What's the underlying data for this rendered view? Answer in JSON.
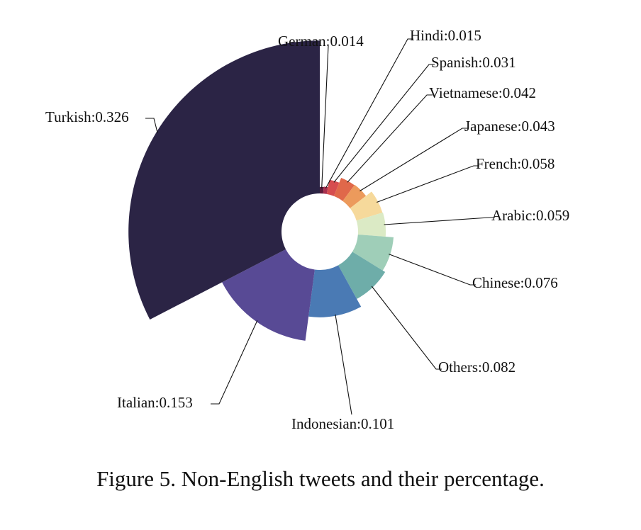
{
  "figure": {
    "caption": "Figure 5. Non-English tweets and their percentage."
  },
  "chart_data": {
    "type": "pie",
    "variant": "rose-donut",
    "slices": [
      {
        "name": "German",
        "value": 0.014,
        "label": "German:0.014",
        "color": "#5e1a3a"
      },
      {
        "name": "Hindi",
        "value": 0.015,
        "label": "Hindi:0.015",
        "color": "#a9314e"
      },
      {
        "name": "Spanish",
        "value": 0.031,
        "label": "Spanish:0.031",
        "color": "#d64d4f"
      },
      {
        "name": "Vietnamese",
        "value": 0.042,
        "label": "Vietnamese:0.042",
        "color": "#e0684a"
      },
      {
        "name": "Japanese",
        "value": 0.043,
        "label": "Japanese:0.043",
        "color": "#ec9a5c"
      },
      {
        "name": "French",
        "value": 0.058,
        "label": "French:0.058",
        "color": "#f6d99b"
      },
      {
        "name": "Arabic",
        "value": 0.059,
        "label": "Arabic:0.059",
        "color": "#dbeac5"
      },
      {
        "name": "Chinese",
        "value": 0.076,
        "label": "Chinese:0.076",
        "color": "#9fceb8"
      },
      {
        "name": "Others",
        "value": 0.082,
        "label": "Others:0.082",
        "color": "#6eada9"
      },
      {
        "name": "Indonesian",
        "value": 0.101,
        "label": "Indonesian:0.101",
        "color": "#4a7ab4"
      },
      {
        "name": "Italian",
        "value": 0.153,
        "label": "Italian:0.153",
        "color": "#584a95"
      },
      {
        "name": "Turkish",
        "value": 0.326,
        "label": "Turkish:0.326",
        "color": "#2b2445"
      }
    ]
  }
}
